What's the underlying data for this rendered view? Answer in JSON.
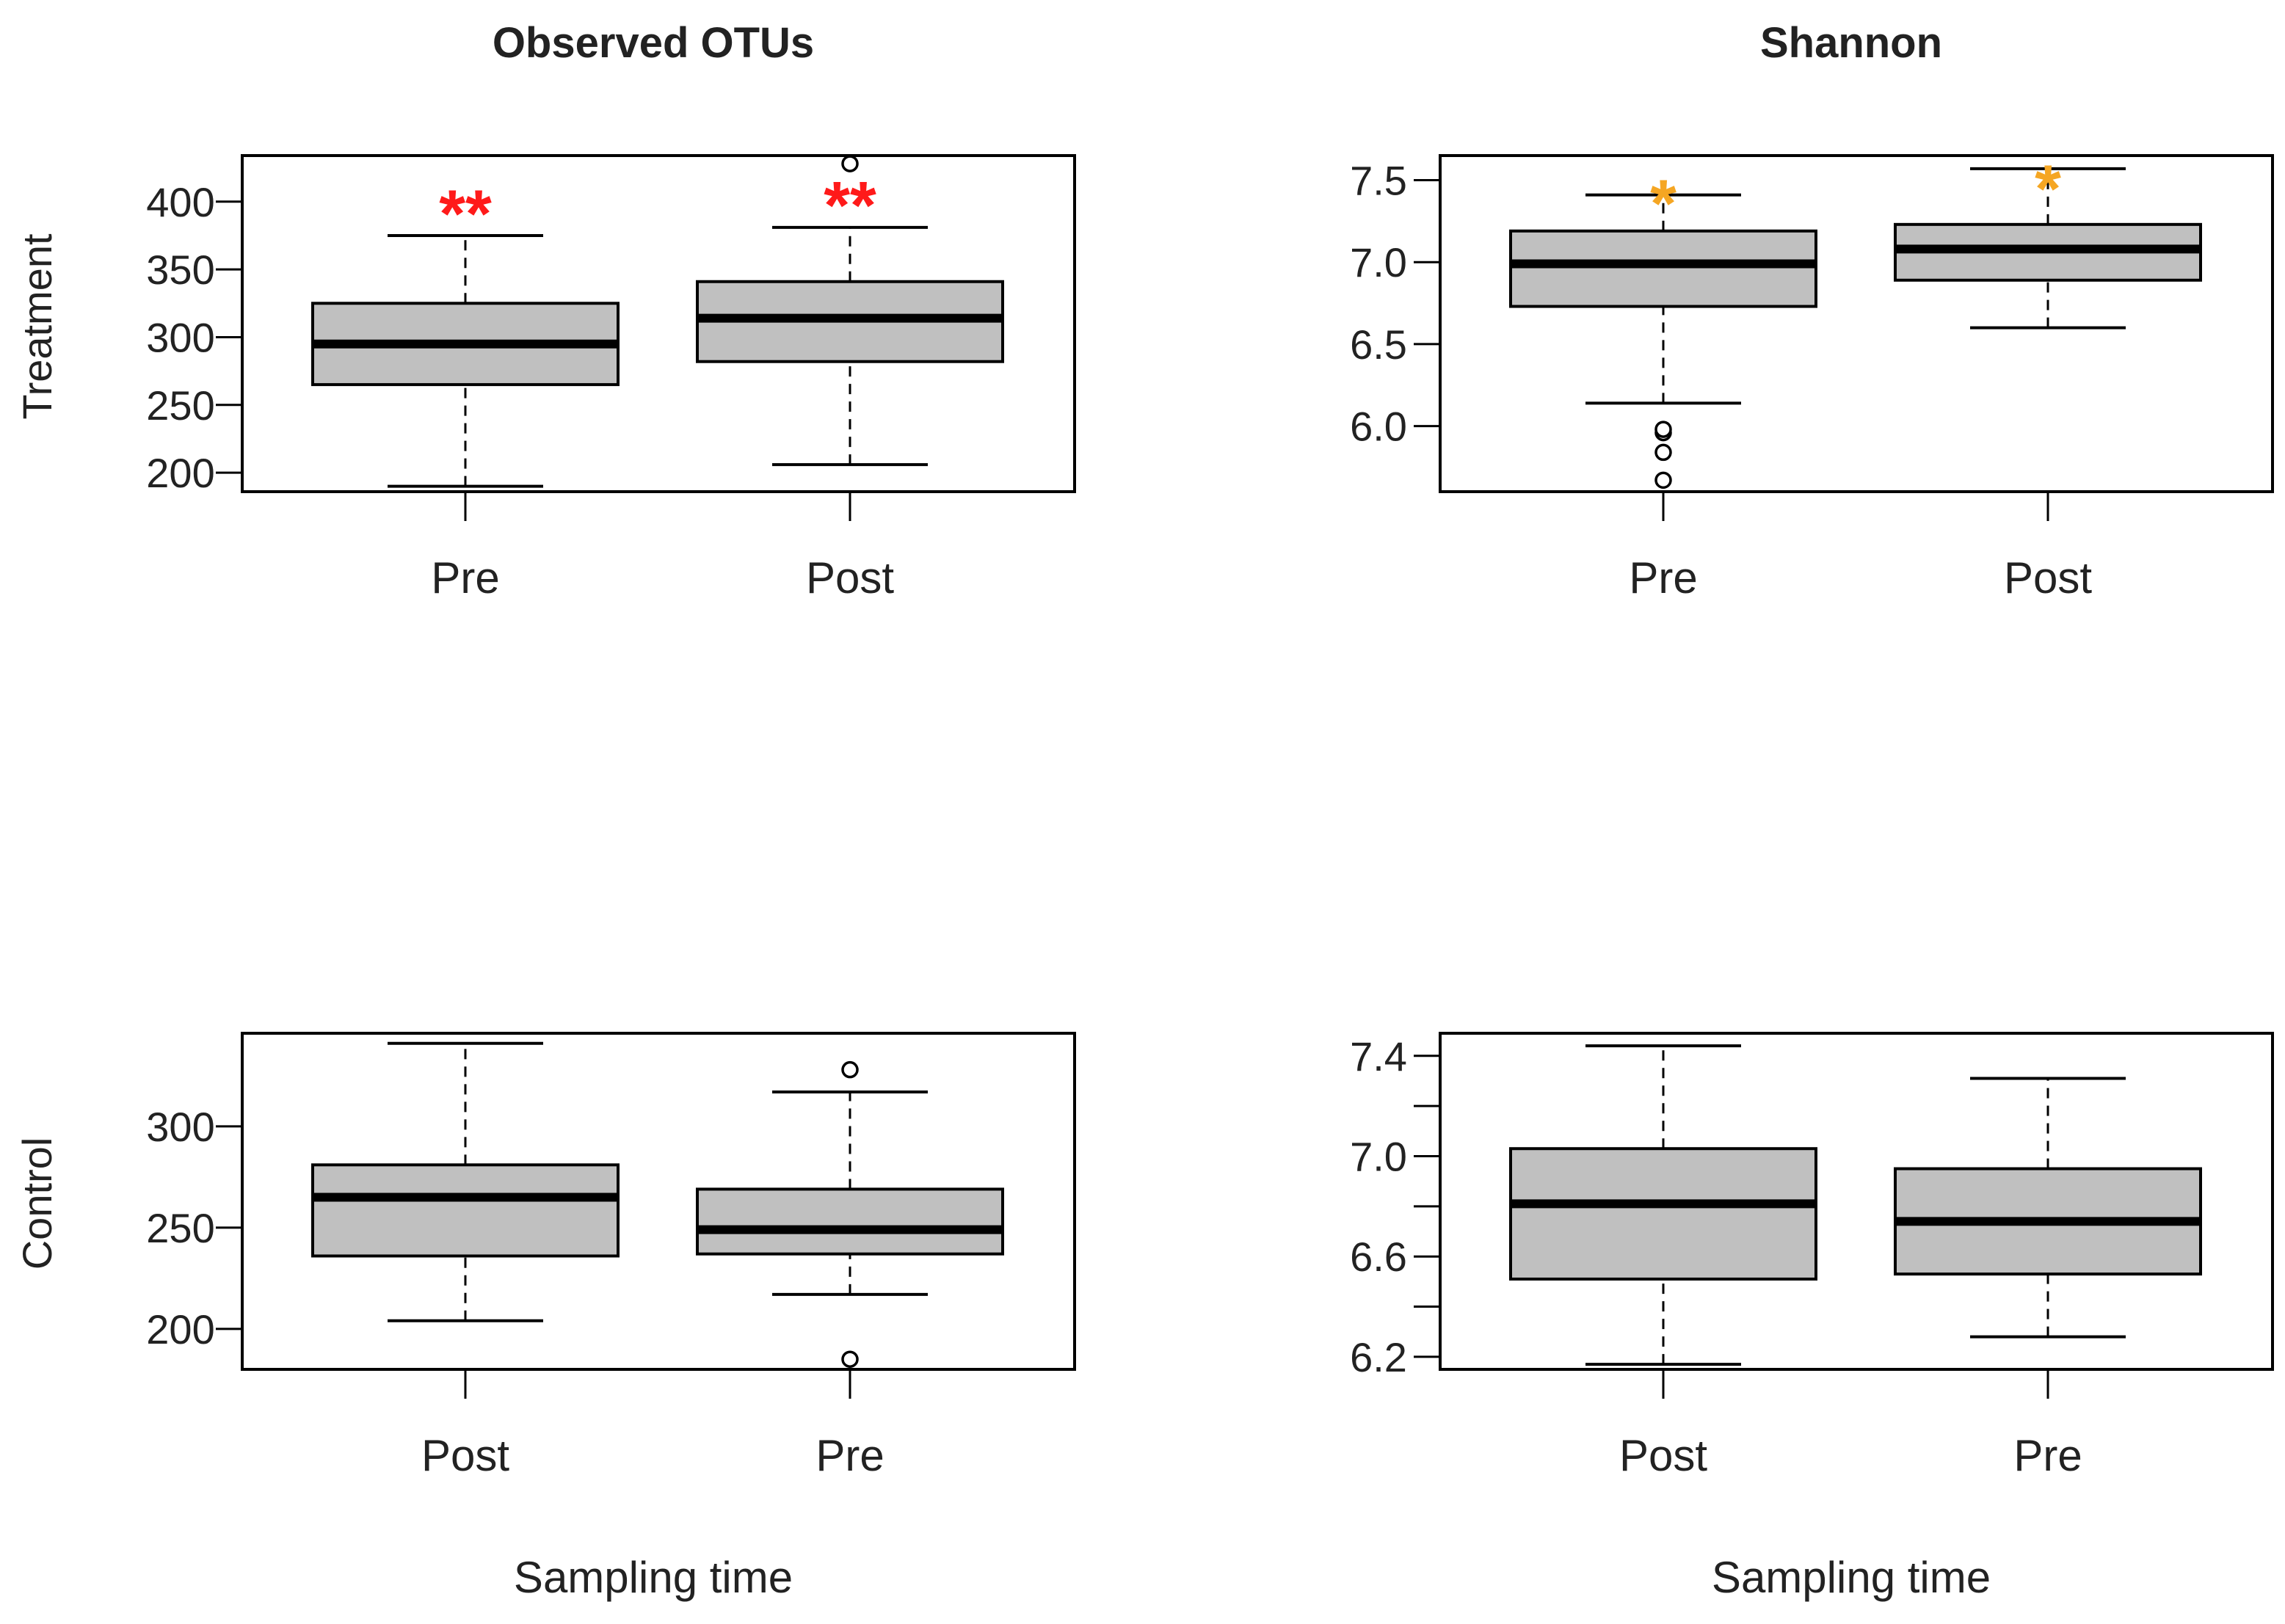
{
  "column_titles": [
    "Observed OTUs",
    "Shannon"
  ],
  "row_labels": [
    "Treatment",
    "Control"
  ],
  "x_axis_title": "Sampling time",
  "colors": {
    "box_fill": "#c0c0c0",
    "line": "#000000",
    "sig_red": "#ff1a1a",
    "sig_orange": "#f5a623"
  },
  "chart_data": [
    {
      "type": "boxplot",
      "title": "Observed OTUs",
      "ylabel": "Treatment",
      "xlabel": "",
      "ylim": [
        186,
        434
      ],
      "yticks": [
        200,
        250,
        300,
        350,
        400
      ],
      "ytick_labels": [
        "200",
        "250",
        "300",
        "350",
        "400"
      ],
      "categories": [
        "Pre",
        "Post"
      ],
      "boxes": [
        {
          "category": "Pre",
          "whisker_low": 190,
          "q1": 265,
          "median": 295,
          "q3": 325,
          "whisker_high": 375,
          "outliers": [],
          "annotation": "**",
          "annotation_color": "#ff1a1a",
          "annotation_y": 400
        },
        {
          "category": "Post",
          "whisker_low": 206,
          "q1": 282,
          "median": 314,
          "q3": 341,
          "whisker_high": 381,
          "outliers": [
            428
          ],
          "annotation": "**",
          "annotation_color": "#ff1a1a",
          "annotation_y": 406
        }
      ]
    },
    {
      "type": "boxplot",
      "title": "Shannon",
      "ylabel": "",
      "xlabel": "",
      "ylim": [
        5.6,
        7.65
      ],
      "yticks": [
        6.0,
        6.5,
        7.0,
        7.5
      ],
      "ytick_labels": [
        "6.0",
        "6.5",
        "7.0",
        "7.5"
      ],
      "categories": [
        "Pre",
        "Post"
      ],
      "boxes": [
        {
          "category": "Pre",
          "whisker_low": 6.14,
          "q1": 6.73,
          "median": 6.99,
          "q3": 7.19,
          "whisker_high": 7.41,
          "outliers": [
            5.67,
            5.84,
            5.96,
            5.98
          ],
          "annotation": "*",
          "annotation_color": "#f5a623",
          "annotation_y": 7.43
        },
        {
          "category": "Post",
          "whisker_low": 6.6,
          "q1": 6.89,
          "median": 7.08,
          "q3": 7.23,
          "whisker_high": 7.57,
          "outliers": [],
          "annotation": "*",
          "annotation_color": "#f5a623",
          "annotation_y": 7.52
        }
      ]
    },
    {
      "type": "boxplot",
      "title": "",
      "ylabel": "Control",
      "xlabel": "Sampling time",
      "ylim": [
        180,
        346
      ],
      "yticks": [
        200,
        250,
        300
      ],
      "ytick_labels": [
        "200",
        "250",
        "300"
      ],
      "categories": [
        "Post",
        "Pre"
      ],
      "boxes": [
        {
          "category": "Post",
          "whisker_low": 204,
          "q1": 236,
          "median": 265,
          "q3": 281,
          "whisker_high": 341,
          "outliers": [],
          "annotation": "",
          "annotation_color": "",
          "annotation_y": 0
        },
        {
          "category": "Pre",
          "whisker_low": 217,
          "q1": 237,
          "median": 249,
          "q3": 269,
          "whisker_high": 317,
          "outliers": [
            185,
            328
          ],
          "annotation": "",
          "annotation_color": "",
          "annotation_y": 0
        }
      ]
    },
    {
      "type": "boxplot",
      "title": "",
      "ylabel": "",
      "xlabel": "Sampling time",
      "ylim": [
        6.15,
        7.49
      ],
      "yticks": [
        6.2,
        6.4,
        6.6,
        6.8,
        7.0,
        7.2,
        7.4
      ],
      "ytick_labels": [
        "6.2",
        "",
        "6.6",
        "",
        "7.0",
        "",
        "7.4"
      ],
      "categories": [
        "Post",
        "Pre"
      ],
      "boxes": [
        {
          "category": "Post",
          "whisker_low": 6.17,
          "q1": 6.51,
          "median": 6.81,
          "q3": 7.03,
          "whisker_high": 7.44,
          "outliers": [],
          "annotation": "",
          "annotation_color": "",
          "annotation_y": 0
        },
        {
          "category": "Pre",
          "whisker_low": 6.28,
          "q1": 6.53,
          "median": 6.74,
          "q3": 6.95,
          "whisker_high": 7.31,
          "outliers": [],
          "annotation": "",
          "annotation_color": "",
          "annotation_y": 0
        }
      ]
    }
  ]
}
